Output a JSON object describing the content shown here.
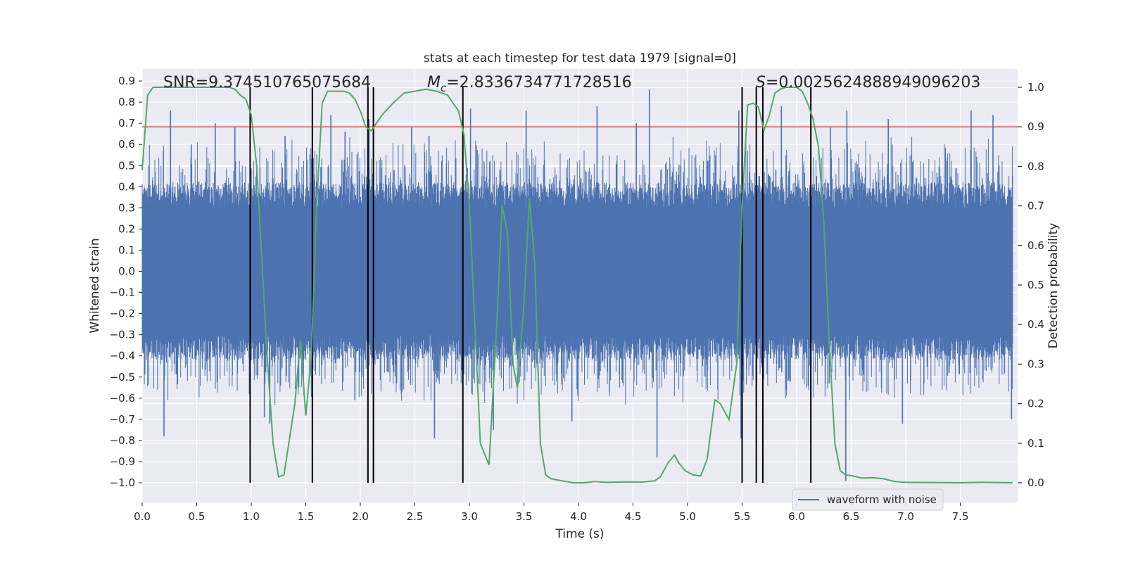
{
  "chart_data": {
    "type": "line",
    "title": "stats at each timestep for test data 1979 [signal=0]",
    "xlabel": "Time (s)",
    "ylabel_left": "Whitened strain",
    "ylabel_right": "Detection probability",
    "xlim": [
      0,
      8
    ],
    "ylim_left": [
      -1.05,
      0.95
    ],
    "ylim_right": [
      -0.05,
      1.05
    ],
    "x_ticks": [
      "0.0",
      "0.5",
      "1.0",
      "1.5",
      "2.0",
      "2.5",
      "3.0",
      "3.5",
      "4.0",
      "4.5",
      "5.0",
      "5.5",
      "6.0",
      "6.5",
      "7.0",
      "7.5"
    ],
    "y_ticks_left": [
      "0.9",
      "0.8",
      "0.7",
      "0.6",
      "0.5",
      "0.4",
      "0.3",
      "0.2",
      "0.1",
      "0.0",
      "−0.1",
      "−0.2",
      "−0.3",
      "−0.4",
      "−0.5",
      "−0.6",
      "−0.7",
      "−0.8",
      "−0.9",
      "−1.0"
    ],
    "y_ticks_right": [
      "1.0",
      "0.9",
      "0.8",
      "0.7",
      "0.6",
      "0.5",
      "0.4",
      "0.3",
      "0.2",
      "0.1",
      "0.0"
    ],
    "grid": true,
    "legend": {
      "position": "bottom-right",
      "entries": [
        "waveform with noise"
      ]
    },
    "annotations": {
      "snr": "SNR=9.374510765075684",
      "mc_symbol": "M",
      "mc_sub": "c",
      "mc_value": "=2.8336734771728516",
      "s_symbol": "S",
      "s_value": "=0.0025624888949096203"
    },
    "threshold": {
      "axis": "right",
      "value": 0.9,
      "color": "#c44e52"
    },
    "vertical_markers": [
      0.99,
      1.56,
      2.07,
      2.12,
      2.94,
      5.5,
      5.63,
      5.69,
      6.13
    ],
    "waveform": {
      "name": "waveform with noise",
      "color": "#4c72b0",
      "t_start": 0.0,
      "t_end": 7.98,
      "core_envelope": 0.3,
      "spikes": [
        {
          "t": 0.2,
          "v": -0.78
        },
        {
          "t": 0.26,
          "v": 0.76
        },
        {
          "t": 0.45,
          "v": 0.6
        },
        {
          "t": 0.67,
          "v": 0.7
        },
        {
          "t": 0.85,
          "v": 0.68
        },
        {
          "t": 1.12,
          "v": -0.69
        },
        {
          "t": 1.17,
          "v": -0.72
        },
        {
          "t": 1.31,
          "v": 0.64
        },
        {
          "t": 1.73,
          "v": 0.74
        },
        {
          "t": 1.86,
          "v": 0.66
        },
        {
          "t": 1.95,
          "v": -0.61
        },
        {
          "t": 2.08,
          "v": 0.72
        },
        {
          "t": 2.47,
          "v": 0.68
        },
        {
          "t": 2.63,
          "v": 0.64
        },
        {
          "t": 2.68,
          "v": -0.79
        },
        {
          "t": 3.01,
          "v": 0.77
        },
        {
          "t": 3.22,
          "v": -0.75
        },
        {
          "t": 3.52,
          "v": 0.76
        },
        {
          "t": 3.94,
          "v": -0.71
        },
        {
          "t": 4.17,
          "v": 0.78
        },
        {
          "t": 4.53,
          "v": 0.7
        },
        {
          "t": 4.65,
          "v": 0.86
        },
        {
          "t": 4.72,
          "v": -0.88
        },
        {
          "t": 5.47,
          "v": 0.76
        },
        {
          "t": 5.49,
          "v": -0.79
        },
        {
          "t": 5.86,
          "v": 0.78
        },
        {
          "t": 6.31,
          "v": 0.68
        },
        {
          "t": 6.45,
          "v": -0.99
        },
        {
          "t": 6.46,
          "v": 0.76
        },
        {
          "t": 6.84,
          "v": 0.72
        },
        {
          "t": 6.97,
          "v": -0.72
        },
        {
          "t": 7.6,
          "v": 0.76
        },
        {
          "t": 7.8,
          "v": 0.74
        },
        {
          "t": 7.97,
          "v": -0.7
        }
      ]
    },
    "probability": {
      "color": "#55a868",
      "points": [
        [
          0.0,
          0.79
        ],
        [
          0.05,
          0.98
        ],
        [
          0.1,
          1.0
        ],
        [
          0.2,
          1.0
        ],
        [
          0.3,
          1.0
        ],
        [
          0.4,
          1.0
        ],
        [
          0.5,
          1.0
        ],
        [
          0.6,
          1.0
        ],
        [
          0.7,
          1.0
        ],
        [
          0.8,
          1.0
        ],
        [
          0.85,
          0.995
        ],
        [
          0.9,
          0.98
        ],
        [
          0.95,
          0.97
        ],
        [
          1.0,
          0.93
        ],
        [
          1.05,
          0.8
        ],
        [
          1.1,
          0.55
        ],
        [
          1.15,
          0.3
        ],
        [
          1.2,
          0.1
        ],
        [
          1.25,
          0.015
        ],
        [
          1.3,
          0.02
        ],
        [
          1.4,
          0.2
        ],
        [
          1.45,
          0.36
        ],
        [
          1.5,
          0.17
        ],
        [
          1.55,
          0.32
        ],
        [
          1.6,
          0.7
        ],
        [
          1.65,
          0.96
        ],
        [
          1.7,
          0.99
        ],
        [
          1.8,
          0.99
        ],
        [
          1.85,
          0.99
        ],
        [
          1.9,
          0.985
        ],
        [
          1.95,
          0.97
        ],
        [
          2.0,
          0.94
        ],
        [
          2.05,
          0.9
        ],
        [
          2.1,
          0.89
        ],
        [
          2.2,
          0.93
        ],
        [
          2.3,
          0.96
        ],
        [
          2.4,
          0.985
        ],
        [
          2.5,
          0.99
        ],
        [
          2.6,
          0.995
        ],
        [
          2.7,
          0.99
        ],
        [
          2.8,
          0.98
        ],
        [
          2.9,
          0.94
        ],
        [
          2.95,
          0.88
        ],
        [
          3.0,
          0.7
        ],
        [
          3.05,
          0.4
        ],
        [
          3.1,
          0.1
        ],
        [
          3.18,
          0.045
        ],
        [
          3.25,
          0.4
        ],
        [
          3.3,
          0.7
        ],
        [
          3.35,
          0.63
        ],
        [
          3.4,
          0.3
        ],
        [
          3.44,
          0.24
        ],
        [
          3.5,
          0.45
        ],
        [
          3.55,
          0.72
        ],
        [
          3.6,
          0.55
        ],
        [
          3.65,
          0.1
        ],
        [
          3.7,
          0.02
        ],
        [
          3.75,
          0.01
        ],
        [
          3.85,
          0.005
        ],
        [
          3.95,
          0.0
        ],
        [
          4.05,
          0.0
        ],
        [
          4.15,
          0.003
        ],
        [
          4.25,
          0.001
        ],
        [
          4.4,
          0.002
        ],
        [
          4.6,
          0.002
        ],
        [
          4.7,
          0.005
        ],
        [
          4.75,
          0.015
        ],
        [
          4.82,
          0.05
        ],
        [
          4.88,
          0.07
        ],
        [
          4.92,
          0.05
        ],
        [
          4.98,
          0.03
        ],
        [
          5.05,
          0.02
        ],
        [
          5.12,
          0.017
        ],
        [
          5.18,
          0.06
        ],
        [
          5.25,
          0.21
        ],
        [
          5.3,
          0.2
        ],
        [
          5.38,
          0.16
        ],
        [
          5.45,
          0.3
        ],
        [
          5.5,
          0.7
        ],
        [
          5.55,
          0.955
        ],
        [
          5.6,
          0.96
        ],
        [
          5.65,
          0.95
        ],
        [
          5.7,
          0.89
        ],
        [
          5.75,
          0.93
        ],
        [
          5.8,
          0.985
        ],
        [
          5.85,
          0.995
        ],
        [
          5.9,
          1.0
        ],
        [
          5.95,
          1.0
        ],
        [
          6.0,
          1.0
        ],
        [
          6.05,
          0.99
        ],
        [
          6.1,
          0.96
        ],
        [
          6.15,
          0.92
        ],
        [
          6.2,
          0.85
        ],
        [
          6.25,
          0.65
        ],
        [
          6.3,
          0.35
        ],
        [
          6.35,
          0.1
        ],
        [
          6.4,
          0.03
        ],
        [
          6.45,
          0.02
        ],
        [
          6.5,
          0.018
        ],
        [
          6.6,
          0.012
        ],
        [
          6.7,
          0.013
        ],
        [
          6.8,
          0.01
        ],
        [
          6.9,
          0.003
        ],
        [
          7.0,
          0.001
        ],
        [
          7.5,
          0.0
        ],
        [
          7.7,
          0.001
        ],
        [
          7.98,
          0.0
        ]
      ]
    }
  }
}
